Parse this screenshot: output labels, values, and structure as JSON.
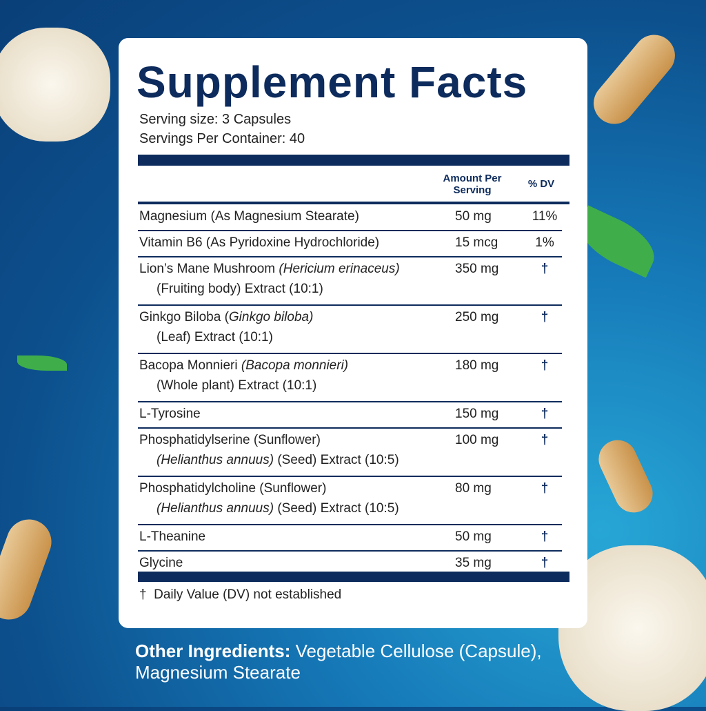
{
  "title": "Supplement Facts",
  "serving_size": "Serving size: 3 Capsules",
  "servings_per_container": "Servings Per Container: 40",
  "table": {
    "headers": [
      "Amount Per Serving",
      "% DV"
    ],
    "rows": [
      {
        "lines": [
          [
            {
              "text": "Magnesium (As Magnesium Stearate)"
            }
          ]
        ],
        "amount": "50 mg",
        "dv": "11%"
      },
      {
        "lines": [
          [
            {
              "text": "Vitamin B6 (As Pyridoxine Hydrochloride)"
            }
          ]
        ],
        "amount": "15 mcg",
        "dv": "1%"
      },
      {
        "lines": [
          [
            {
              "text": "Lion’s Mane Mushroom "
            },
            {
              "text": "(Hericium erinaceus)",
              "italic": true
            }
          ],
          [
            {
              "text": "(Fruiting body) Extract (10:1)"
            }
          ]
        ],
        "amount": "350 mg",
        "dv": "†"
      },
      {
        "lines": [
          [
            {
              "text": "Ginkgo Biloba ("
            },
            {
              "text": "Ginkgo biloba)",
              "italic": true
            }
          ],
          [
            {
              "text": "(Leaf) Extract (10:1)"
            }
          ]
        ],
        "amount": "250 mg",
        "dv": "†"
      },
      {
        "lines": [
          [
            {
              "text": "Bacopa Monnieri "
            },
            {
              "text": "(Bacopa monnieri)",
              "italic": true
            }
          ],
          [
            {
              "text": "(Whole plant) Extract (10:1)"
            }
          ]
        ],
        "amount": "180 mg",
        "dv": "†"
      },
      {
        "lines": [
          [
            {
              "text": "L-Tyrosine"
            }
          ]
        ],
        "amount": "150 mg",
        "dv": "†"
      },
      {
        "lines": [
          [
            {
              "text": "Phosphatidylserine (Sunflower)"
            }
          ],
          [
            {
              "text": "(Helianthus annuus)",
              "italic": true
            },
            {
              "text": " (Seed) Extract (10:5)"
            }
          ]
        ],
        "amount": "100 mg",
        "dv": "†"
      },
      {
        "lines": [
          [
            {
              "text": "Phosphatidylcholine (Sunflower)"
            }
          ],
          [
            {
              "text": "(Helianthus annuus)",
              "italic": true
            },
            {
              "text": " (Seed) Extract (10:5)"
            }
          ]
        ],
        "amount": "80 mg",
        "dv": "†"
      },
      {
        "lines": [
          [
            {
              "text": "L-Theanine"
            }
          ]
        ],
        "amount": "50 mg",
        "dv": "†"
      },
      {
        "lines": [
          [
            {
              "text": "Glycine"
            }
          ]
        ],
        "amount": "35 mg",
        "dv": "†"
      }
    ]
  },
  "footnote": "†  Daily Value (DV) not established",
  "other_ingredients": {
    "label": "Other Ingredients:",
    "text": "Vegetable Cellulose (Capsule), Magnesium Stearate"
  }
}
